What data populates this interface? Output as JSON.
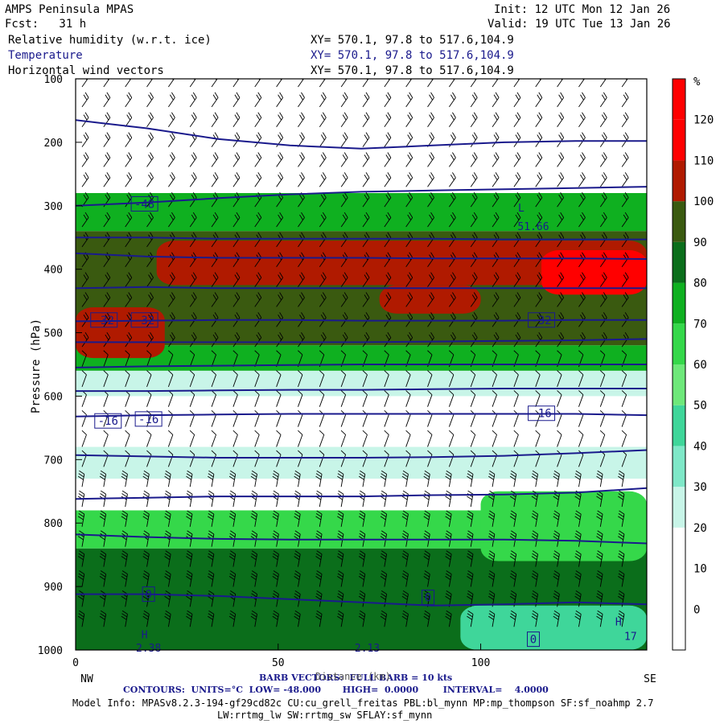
{
  "header": {
    "title": "AMPS Peninsula MPAS",
    "fcst": "Fcst:   31 h",
    "init": "Init: 12 UTC Mon 12 Jan 26",
    "valid": "Valid: 19 UTC Tue 13 Jan 26",
    "fields": [
      {
        "name": "Relative humidity (w.r.t. ice)",
        "xy": "XY= 570.1, 97.8 to 517.6,104.9"
      },
      {
        "name": "Temperature",
        "xy": "XY= 570.1, 97.8 to 517.6,104.9"
      },
      {
        "name": "Horizontal wind vectors",
        "xy": "XY= 570.1, 97.8 to 517.6,104.9"
      }
    ]
  },
  "chart_data": {
    "type": "heatmap",
    "title": "Relative humidity (w.r.t. ice), Temperature, Horizontal wind vectors",
    "ylabel": "Pressure (hPa)",
    "xlabel": "Distance (km)",
    "xlim": [
      0,
      141
    ],
    "ylim": [
      1000,
      100
    ],
    "x_ticks": [
      0,
      50,
      100
    ],
    "y_ticks": [
      100,
      200,
      300,
      400,
      500,
      600,
      700,
      800,
      900,
      1000
    ],
    "x_end_labels": {
      "left": "NW",
      "right": "SE"
    },
    "colorbar": {
      "units": "%",
      "levels": [
        0,
        10,
        20,
        30,
        40,
        50,
        60,
        70,
        80,
        90,
        100,
        110,
        120
      ],
      "colors": [
        "#ffffff",
        "#ffffff",
        "#ffffff",
        "#c8f5e8",
        "#7fe8c8",
        "#3fd69a",
        "#6ee87a",
        "#35d84a",
        "#0fb020",
        "#0b6e1b",
        "#3a5a10",
        "#b01a00",
        "#ff0000",
        "#ff0000"
      ]
    },
    "rh_layers": [
      {
        "p_top": 100,
        "p_bot": 280,
        "rh": 5
      },
      {
        "p_top": 280,
        "p_bot": 340,
        "rh": 85
      },
      {
        "p_top": 340,
        "p_bot": 460,
        "rh": 105
      },
      {
        "p_top": 460,
        "p_bot": 520,
        "rh": 100
      },
      {
        "p_top": 520,
        "p_bot": 560,
        "rh": 85
      },
      {
        "p_top": 560,
        "p_bot": 600,
        "rh": 35
      },
      {
        "p_top": 600,
        "p_bot": 680,
        "rh": 15
      },
      {
        "p_top": 680,
        "p_bot": 730,
        "rh": 35
      },
      {
        "p_top": 730,
        "p_bot": 780,
        "rh": 15
      },
      {
        "p_top": 780,
        "p_bot": 840,
        "rh": 70
      },
      {
        "p_top": 840,
        "p_bot": 1000,
        "rh": 95
      }
    ],
    "rh_patches": [
      {
        "x0": 20,
        "x1": 141,
        "p_top": 355,
        "p_bot": 425,
        "rh": 112
      },
      {
        "x0": 75,
        "x1": 100,
        "p_top": 425,
        "p_bot": 470,
        "rh": 112
      },
      {
        "x0": 0,
        "x1": 22,
        "p_top": 460,
        "p_bot": 540,
        "rh": 115
      },
      {
        "x0": 115,
        "x1": 141,
        "p_top": 370,
        "p_bot": 440,
        "rh": 125
      },
      {
        "x0": 100,
        "x1": 141,
        "p_top": 750,
        "p_bot": 860,
        "rh": 75
      },
      {
        "x0": 95,
        "x1": 141,
        "p_top": 930,
        "p_bot": 1000,
        "rh": 50
      }
    ],
    "series": [
      {
        "name": "-48",
        "level": -48,
        "p": [
          300,
          295,
          288,
          282,
          278,
          276,
          274,
          272,
          270
        ]
      },
      {
        "name": "-44",
        "level": -44,
        "p": [
          350,
          350,
          352,
          352,
          352,
          352,
          353,
          353,
          353
        ]
      },
      {
        "name": "-40",
        "level": -40,
        "p": [
          375,
          380,
          382,
          382,
          382,
          383,
          383,
          383,
          384
        ]
      },
      {
        "name": "-36",
        "level": -36,
        "p": [
          430,
          428,
          430,
          430,
          430,
          430,
          430,
          430,
          430
        ]
      },
      {
        "name": "-32",
        "level": -32,
        "p": [
          482,
          481,
          480,
          480,
          481,
          481,
          481,
          480,
          480
        ]
      },
      {
        "name": "-28",
        "level": -28,
        "p": [
          515,
          515,
          515,
          515,
          515,
          514,
          513,
          512,
          510
        ]
      },
      {
        "name": "-24",
        "level": -24,
        "p": [
          555,
          553,
          552,
          551,
          550,
          550,
          550,
          550,
          550
        ]
      },
      {
        "name": "-20",
        "level": -20,
        "p": [
          592,
          592,
          591,
          590,
          590,
          589,
          588,
          588,
          588
        ]
      },
      {
        "name": "-16",
        "level": -16,
        "p": [
          632,
          630,
          629,
          628,
          628,
          628,
          628,
          628,
          630
        ]
      },
      {
        "name": "-12",
        "level": -12,
        "p": [
          693,
          695,
          697,
          697,
          697,
          696,
          694,
          690,
          685
        ]
      },
      {
        "name": "-8",
        "level": -8,
        "p": [
          762,
          760,
          758,
          758,
          758,
          756,
          755,
          752,
          745
        ]
      },
      {
        "name": "-4",
        "level": -4,
        "p": [
          818,
          822,
          825,
          826,
          826,
          826,
          826,
          828,
          832
        ]
      },
      {
        "name": "0",
        "level": 0,
        "p": [
          912,
          912,
          915,
          920,
          925,
          930,
          928,
          925,
          928
        ]
      }
    ],
    "series_x": [
      0,
      17.6,
      35.3,
      52.9,
      70.5,
      88.1,
      105.8,
      123.4,
      141
    ],
    "tropopause_line": {
      "p": [
        165,
        178,
        195,
        205,
        210,
        205,
        200,
        198,
        198
      ]
    },
    "contour_labels": [
      {
        "text": "-48",
        "x": 17,
        "p": 297
      },
      {
        "text": "-32",
        "x": 7,
        "p": 480
      },
      {
        "text": "-32",
        "x": 17,
        "p": 480
      },
      {
        "text": "-32",
        "x": 115,
        "p": 480
      },
      {
        "text": "-16",
        "x": 8,
        "p": 639
      },
      {
        "text": "-16",
        "x": 18,
        "p": 636
      },
      {
        "text": "-16",
        "x": 115,
        "p": 627
      },
      {
        "text": "0",
        "x": 18,
        "p": 912
      },
      {
        "text": "0",
        "x": 87,
        "p": 917
      },
      {
        "text": "0",
        "x": 113,
        "p": 983
      }
    ],
    "extra_marks": [
      {
        "text": "L",
        "x": 110,
        "p": 303
      },
      {
        "text": "51.66",
        "x": 113,
        "p": 332
      },
      {
        "text": "H",
        "x": 17,
        "p": 975
      },
      {
        "text": "H",
        "x": 134,
        "p": 955
      },
      {
        "text": "2.38",
        "x": 18,
        "p": 996
      },
      {
        "text": "2.13",
        "x": 72,
        "p": 996
      },
      {
        "text": "17",
        "x": 137,
        "p": 978
      }
    ]
  },
  "footer": {
    "barb_line": "BARB VECTORS:  FULL BARB = 10 kts",
    "overlap_label": "Distance (km)",
    "contours": "CONTOURS:  UNITS=°C  LOW= -48.000       HIGH=  0.0000        INTERVAL=    4.0000",
    "model_info_1": "Model Info: MPASv8.2.3-194-gf29cd82c CU:cu_grell_freitas PBL:bl_mynn MP:mp_thompson SF:sf_noahmp 2.7",
    "model_info_2": "LW:rrtmg_lw SW:rrtmg_sw SFLAY:sf_mynn"
  }
}
